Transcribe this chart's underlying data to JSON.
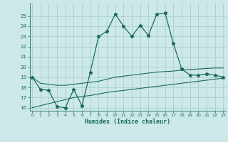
{
  "xlabel": "Humidex (Indice chaleur)",
  "bg_color": "#cce8e8",
  "grid_color": "#aacfcf",
  "line_color": "#1a6b5a",
  "x_values": [
    0,
    1,
    2,
    3,
    4,
    5,
    6,
    7,
    8,
    9,
    10,
    11,
    12,
    13,
    14,
    15,
    16,
    17,
    18,
    19,
    20,
    21,
    22,
    23
  ],
  "main_line": [
    19.0,
    17.8,
    17.7,
    16.1,
    16.0,
    17.8,
    16.2,
    19.5,
    23.0,
    23.5,
    25.2,
    24.0,
    23.0,
    24.1,
    23.1,
    25.2,
    25.3,
    22.3,
    19.8,
    19.2,
    19.2,
    19.3,
    19.2,
    19.0
  ],
  "upper_line": [
    19.0,
    18.4,
    18.3,
    18.2,
    18.2,
    18.3,
    18.4,
    18.5,
    18.6,
    18.8,
    19.0,
    19.1,
    19.2,
    19.3,
    19.4,
    19.5,
    19.55,
    19.6,
    19.7,
    19.75,
    19.8,
    19.85,
    19.9,
    19.9
  ],
  "lower_line": [
    16.0,
    16.2,
    16.4,
    16.6,
    16.8,
    17.0,
    17.1,
    17.2,
    17.35,
    17.5,
    17.6,
    17.7,
    17.8,
    17.9,
    18.0,
    18.1,
    18.2,
    18.3,
    18.4,
    18.5,
    18.6,
    18.7,
    18.8,
    18.9
  ],
  "ylim_min": 16,
  "ylim_max": 26,
  "xlim_min": 0,
  "xlim_max": 23,
  "yticks": [
    16,
    17,
    18,
    19,
    20,
    21,
    22,
    23,
    24,
    25
  ],
  "xticks": [
    0,
    1,
    2,
    3,
    4,
    5,
    6,
    7,
    8,
    9,
    10,
    11,
    12,
    13,
    14,
    15,
    16,
    17,
    18,
    19,
    20,
    21,
    22,
    23
  ]
}
